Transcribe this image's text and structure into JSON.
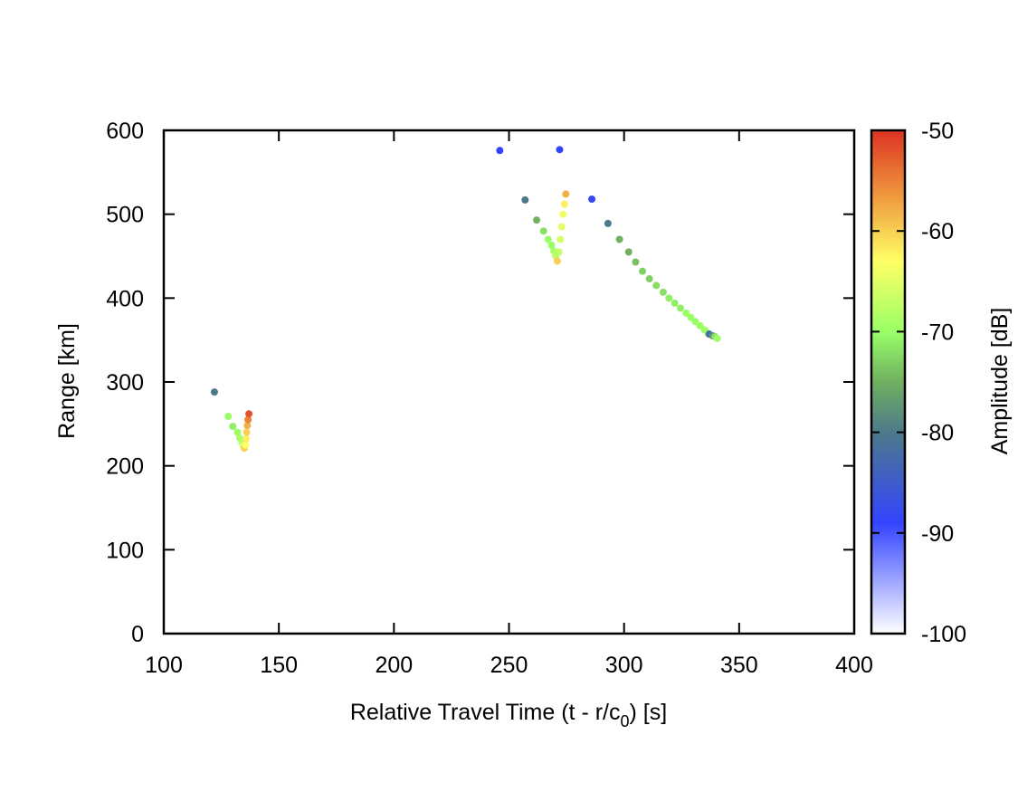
{
  "chart_data": {
    "type": "scatter",
    "title": "",
    "xlabel": "Relative Travel Time (t - r/c",
    "xlabel_sub": "0",
    "xlabel_suffix": ") [s]",
    "ylabel": "Range [km]",
    "xlim": [
      100,
      400
    ],
    "ylim": [
      0,
      600
    ],
    "xticks": [
      100,
      150,
      200,
      250,
      300,
      350,
      400
    ],
    "yticks": [
      0,
      100,
      200,
      300,
      400,
      500,
      600
    ],
    "grid": false,
    "colorbar": {
      "label": "Amplitude [dB]",
      "range": [
        -100,
        -50
      ],
      "ticks": [
        -100,
        -90,
        -80,
        -70,
        -60,
        -50
      ],
      "stops": [
        {
          "value": -100,
          "color": "#ffffff"
        },
        {
          "value": -89,
          "color": "#3344ff"
        },
        {
          "value": -80,
          "color": "#4d7a8a"
        },
        {
          "value": -75,
          "color": "#70b060"
        },
        {
          "value": -70,
          "color": "#99ff66"
        },
        {
          "value": -63,
          "color": "#ffff66"
        },
        {
          "value": -57,
          "color": "#f0a040"
        },
        {
          "value": -50,
          "color": "#dd3322"
        }
      ]
    },
    "series": [
      {
        "points": [
          {
            "x": 122,
            "y": 288,
            "amp": -80
          },
          {
            "x": 128,
            "y": 259,
            "amp": -70
          },
          {
            "x": 130,
            "y": 247,
            "amp": -71
          },
          {
            "x": 132,
            "y": 240,
            "amp": -70
          },
          {
            "x": 133,
            "y": 233,
            "amp": -69
          },
          {
            "x": 134,
            "y": 228,
            "amp": -68
          },
          {
            "x": 134.5,
            "y": 224,
            "amp": -66
          },
          {
            "x": 135,
            "y": 221,
            "amp": -60
          },
          {
            "x": 135.5,
            "y": 225,
            "amp": -63
          },
          {
            "x": 135.8,
            "y": 232,
            "amp": -62
          },
          {
            "x": 136,
            "y": 240,
            "amp": -60
          },
          {
            "x": 136.3,
            "y": 248,
            "amp": -58
          },
          {
            "x": 136.6,
            "y": 255,
            "amp": -55
          },
          {
            "x": 137,
            "y": 262,
            "amp": -52
          }
        ]
      },
      {
        "points": [
          {
            "x": 246,
            "y": 576,
            "amp": -89
          },
          {
            "x": 272,
            "y": 577,
            "amp": -89
          },
          {
            "x": 257,
            "y": 517,
            "amp": -80
          },
          {
            "x": 262,
            "y": 493,
            "amp": -75
          },
          {
            "x": 265,
            "y": 480,
            "amp": -72
          },
          {
            "x": 267,
            "y": 470,
            "amp": -70
          },
          {
            "x": 268.5,
            "y": 463,
            "amp": -70
          },
          {
            "x": 269.5,
            "y": 456,
            "amp": -69
          },
          {
            "x": 270.3,
            "y": 450,
            "amp": -68
          },
          {
            "x": 271,
            "y": 444,
            "amp": -60
          },
          {
            "x": 271.7,
            "y": 455,
            "amp": -67
          },
          {
            "x": 272.3,
            "y": 470,
            "amp": -66
          },
          {
            "x": 272.9,
            "y": 485,
            "amp": -65
          },
          {
            "x": 273.5,
            "y": 500,
            "amp": -64
          },
          {
            "x": 274.1,
            "y": 512,
            "amp": -62
          },
          {
            "x": 274.7,
            "y": 524,
            "amp": -58
          },
          {
            "x": 286,
            "y": 518,
            "amp": -88
          },
          {
            "x": 293,
            "y": 489,
            "amp": -80
          },
          {
            "x": 298,
            "y": 470,
            "amp": -75
          },
          {
            "x": 302,
            "y": 455,
            "amp": -75
          },
          {
            "x": 305,
            "y": 443,
            "amp": -74
          },
          {
            "x": 308,
            "y": 432,
            "amp": -73
          },
          {
            "x": 311,
            "y": 423,
            "amp": -73
          },
          {
            "x": 314,
            "y": 415,
            "amp": -72
          },
          {
            "x": 317,
            "y": 407,
            "amp": -72
          },
          {
            "x": 319.5,
            "y": 400,
            "amp": -71
          },
          {
            "x": 322,
            "y": 394,
            "amp": -71
          },
          {
            "x": 324.5,
            "y": 388,
            "amp": -71
          },
          {
            "x": 327,
            "y": 382,
            "amp": -70
          },
          {
            "x": 329,
            "y": 377,
            "amp": -70
          },
          {
            "x": 331,
            "y": 372,
            "amp": -70
          },
          {
            "x": 333,
            "y": 367,
            "amp": -70
          },
          {
            "x": 335,
            "y": 362,
            "amp": -70
          },
          {
            "x": 336.5,
            "y": 358,
            "amp": -70
          },
          {
            "x": 337,
            "y": 357,
            "amp": -82
          },
          {
            "x": 338.5,
            "y": 355,
            "amp": -78
          },
          {
            "x": 339.5,
            "y": 354,
            "amp": -72
          },
          {
            "x": 340.5,
            "y": 352,
            "amp": -70
          }
        ]
      }
    ]
  }
}
